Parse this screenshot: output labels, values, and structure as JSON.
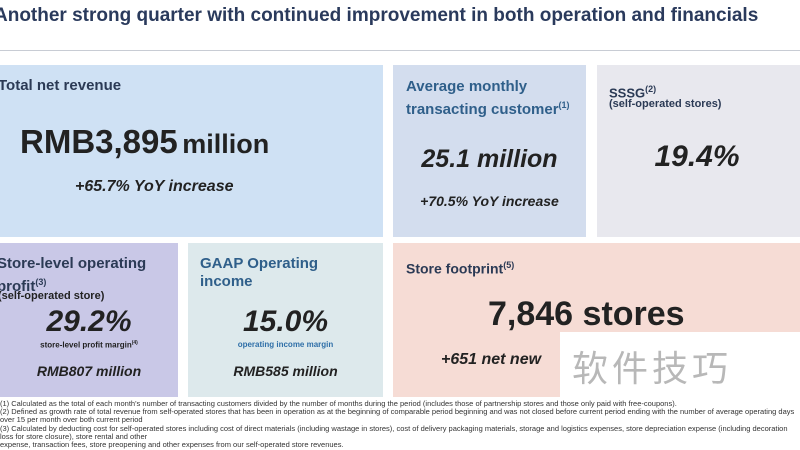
{
  "title": "Another strong quarter with continued improvement in both operation and financials",
  "revenue": {
    "heading": "Total net revenue",
    "value": "RMB3,895",
    "unit": "million",
    "change": "+65.7% YoY increase"
  },
  "mtc": {
    "heading": "Average monthly transacting customer",
    "sup": "(1)",
    "value": "25.1 million",
    "change": "+70.5% YoY increase"
  },
  "sssg": {
    "heading": "SSSG",
    "sup": "(2)",
    "sub": "(self-operated stores)",
    "value": "19.4%"
  },
  "store_profit": {
    "heading1": "Store-level operating",
    "heading2": "profit",
    "sup": "(3)",
    "sub": "(self-operated store)",
    "value": "29.2%",
    "caption": "store-level profit margin",
    "caption_sup": "(4)",
    "amount": "RMB807 million"
  },
  "gaap": {
    "heading": "GAAP Operating income",
    "value": "15.0%",
    "caption": "operating income margin",
    "amount": "RMB585 million"
  },
  "footprint": {
    "heading": "Store footprint",
    "sup": "(5)",
    "value": "7,846 stores",
    "change": "+651 net new"
  },
  "footnotes": [
    "(1) Calculated as the total of each month's number of transacting customers divided by the number of months during the period (includes those of partnership stores and those only paid with free-coupons).",
    "(2) Defined as growth rate of total revenue from self-operated stores that has been in operation as at the beginning of comparable period beginning and was not closed before current period ending with the number of average operating days over 15 per month over both current period",
    "(3) Calculated by deducting cost for self-operated stores including cost of direct materials (including wastage in stores), cost of delivery packaging materials, storage and logistics expenses, store depreciation expense (including decoration loss for store closure), store rental and other",
    "expense, transaction fees, store preopening and other expenses from our self-operated store revenues."
  ],
  "watermark": "软件技巧"
}
